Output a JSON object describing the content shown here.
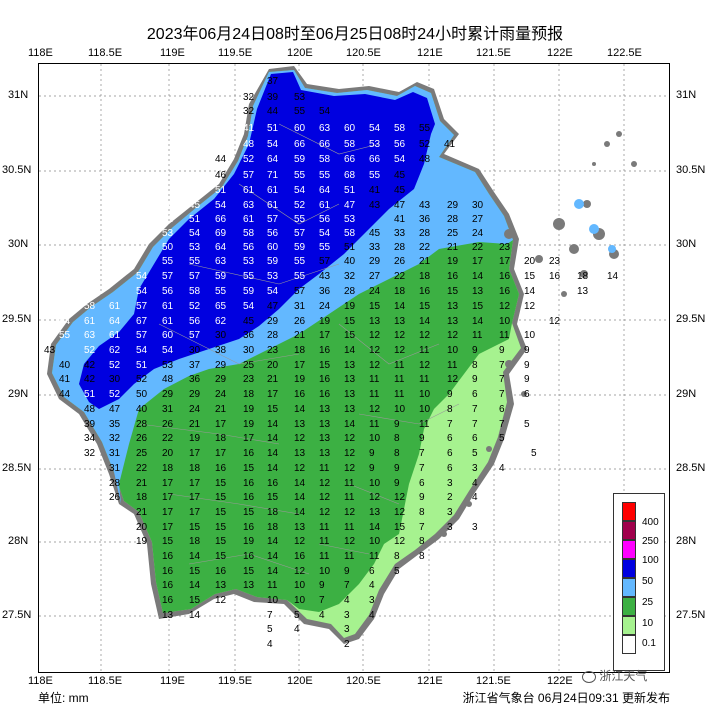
{
  "title": "2023年06月24日08时至06月25日08时24小时累计雨量预报",
  "x_ticks": [
    "118E",
    "118.5E",
    "119E",
    "119.5E",
    "120E",
    "120.5E",
    "121E",
    "121.5E",
    "122E",
    "122.5E"
  ],
  "y_ticks": [
    "31N",
    "30.5N",
    "30N",
    "29.5N",
    "29N",
    "28.5N",
    "28N",
    "27.5N"
  ],
  "unit_label": "单位: mm",
  "issuer": "浙江省气象台 06月24日09:31 更新发布",
  "watermark": "浙江天气",
  "legend": [
    {
      "label": "400",
      "color": "#ff0000"
    },
    {
      "label": "250",
      "color": "#a0004c"
    },
    {
      "label": "100",
      "color": "#ff00ff"
    },
    {
      "label": "50",
      "color": "#0000e0"
    },
    {
      "label": "25",
      "color": "#63b8ff"
    },
    {
      "label": "10",
      "color": "#3cb043"
    },
    {
      "label": "0.1",
      "color": "#a6f28f"
    },
    {
      "label": "",
      "color": "#ffffff"
    }
  ],
  "station_values": [
    [
      "37"
    ],
    [
      "32",
      "39",
      "53"
    ],
    [
      "32",
      "44",
      "55",
      "54"
    ],
    [
      "41",
      "51",
      "60",
      "63",
      "60",
      "54",
      "58",
      "55"
    ],
    [
      "48",
      "54",
      "66",
      "66",
      "58",
      "53",
      "56",
      "52",
      "41"
    ],
    [
      "44",
      "52",
      "64",
      "59",
      "58",
      "66",
      "66",
      "54",
      "48"
    ],
    [
      "46",
      "57",
      "71",
      "55",
      "55",
      "68",
      "55",
      "45"
    ],
    [
      "51",
      "61",
      "61",
      "54",
      "64",
      "51",
      "41",
      "45"
    ],
    [
      "46",
      "45",
      "54",
      "63",
      "61",
      "52",
      "61",
      "47",
      "43",
      "47",
      "43",
      "29",
      "30"
    ],
    [
      "51",
      "51",
      "66",
      "61",
      "57",
      "55",
      "56",
      "53",
      "41",
      "36",
      "28",
      "27"
    ],
    [
      "53",
      "54",
      "69",
      "58",
      "56",
      "57",
      "54",
      "58",
      "45",
      "33",
      "28",
      "25",
      "24"
    ],
    [
      "50",
      "53",
      "64",
      "56",
      "60",
      "59",
      "55",
      "51",
      "33",
      "28",
      "22",
      "21",
      "22",
      "23"
    ],
    [
      "55",
      "55",
      "63",
      "53",
      "59",
      "55",
      "57",
      "40",
      "29",
      "26",
      "21",
      "19",
      "17",
      "17",
      "20",
      "23"
    ],
    [
      "54",
      "57",
      "57",
      "59",
      "55",
      "53",
      "55",
      "43",
      "32",
      "27",
      "22",
      "18",
      "16",
      "14",
      "16",
      "15",
      "16",
      "18",
      "14"
    ]
  ]
}
